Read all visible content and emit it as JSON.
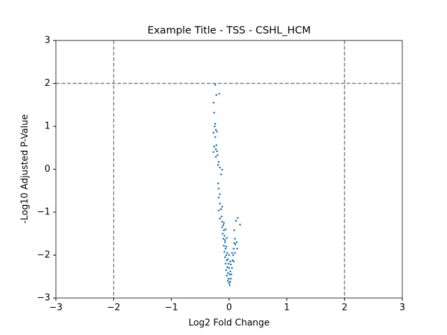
{
  "chart_data": {
    "type": "scatter",
    "title": "Example Title - TSS - CSHL_HCM",
    "x_label": "Log2 Fold Change",
    "y_label": "-Log10 Adjusted P-Value",
    "xlim": [
      -3,
      3
    ],
    "ylim": [
      -3,
      3
    ],
    "xticks": [
      {
        "value": -3,
        "label": "−3"
      },
      {
        "value": -2,
        "label": "−2"
      },
      {
        "value": -1,
        "label": "−1"
      },
      0,
      1,
      2,
      3
    ],
    "yticks": [
      {
        "value": -3,
        "label": "−3"
      },
      {
        "value": -2,
        "label": "−2"
      },
      {
        "value": -1,
        "label": "−1"
      },
      0,
      1,
      2,
      3
    ],
    "vlines": [
      -2,
      2
    ],
    "hlines": [
      2
    ],
    "reference_line_color": "#808080",
    "x": [
      -0.24,
      -0.22,
      -0.17,
      -0.27,
      -0.26,
      -0.24,
      -0.25,
      -0.23,
      -0.27,
      -0.21,
      -0.24,
      -0.22,
      -0.26,
      -0.23,
      -0.21,
      -0.27,
      -0.2,
      -0.23,
      -0.18,
      -0.19,
      -0.16,
      -0.12,
      -0.14,
      -0.19,
      -0.18,
      -0.16,
      -0.18,
      -0.16,
      -0.12,
      -0.14,
      -0.18,
      -0.13,
      -0.16,
      -0.12,
      -0.1,
      -0.12,
      -0.09,
      -0.11,
      -0.08,
      -0.1,
      -0.07,
      -0.09,
      -0.06,
      -0.08,
      -0.05,
      -0.07,
      -0.04,
      -0.06,
      -0.03,
      -0.05,
      -0.02,
      -0.04,
      -0.01,
      -0.02,
      0.0,
      0.01,
      0.02,
      0.03,
      0.04,
      0.02,
      0.05,
      0.03,
      0.06,
      0.07,
      0.05,
      0.08,
      0.09,
      0.1,
      -0.07,
      -0.05,
      -0.03,
      -0.02,
      0.0,
      0.01,
      -0.01,
      -0.04,
      -0.09,
      -0.06,
      0.0,
      0.02,
      0.15,
      0.12,
      0.19,
      0.09,
      0.13,
      0.11,
      0.14,
      0.1,
      0.08
    ],
    "series": [
      {
        "color": "#1f77b4",
        "values": [
          1.97,
          1.73,
          1.76,
          1.55,
          1.32,
          1.06,
          1.0,
          0.92,
          0.85,
          0.88,
          0.75,
          0.56,
          0.53,
          0.47,
          0.42,
          0.4,
          0.33,
          0.29,
          0.17,
          0.1,
          0.04,
          -0.01,
          -0.12,
          -0.33,
          -0.45,
          -0.58,
          -0.66,
          -0.8,
          -0.87,
          -0.93,
          -0.96,
          -1.1,
          -1.15,
          -1.22,
          -1.3,
          -1.35,
          -1.42,
          -1.5,
          -1.55,
          -1.62,
          -1.7,
          -1.78,
          -1.85,
          -1.92,
          -2.0,
          -2.05,
          -2.12,
          -2.2,
          -2.28,
          -2.35,
          -2.42,
          -2.48,
          -2.55,
          -2.6,
          -2.65,
          -2.7,
          -2.62,
          -2.55,
          -2.45,
          -2.38,
          -2.3,
          -2.22,
          -2.12,
          -2.0,
          -1.95,
          -1.85,
          -1.72,
          -1.62,
          -1.65,
          -1.8,
          -1.95,
          -2.1,
          -2.3,
          -2.45,
          -2.2,
          -1.6,
          -1.25,
          -1.4,
          -2.0,
          -2.15,
          -1.13,
          -1.2,
          -1.29,
          -1.42,
          -1.7,
          -1.75,
          -1.85,
          -1.95,
          -2.15
        ]
      }
    ]
  }
}
